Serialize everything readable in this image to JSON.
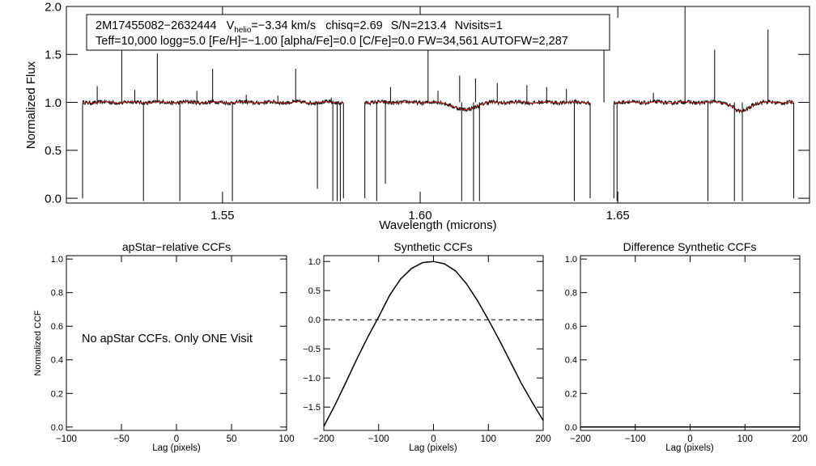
{
  "chart_data": [
    {
      "type": "line",
      "panel": "spectrum",
      "title": "",
      "xlabel": "Wavelength (microns)",
      "ylabel": "Normalized Flux",
      "xlim": [
        1.5105,
        1.6985
      ],
      "ylim": [
        -0.05,
        2.0
      ],
      "x_ticks": [
        1.55,
        1.6,
        1.65
      ],
      "x_tick_labels": [
        "1.55",
        "1.60",
        "1.65"
      ],
      "y_ticks": [
        0.0,
        0.5,
        1.0,
        1.5,
        2.0
      ],
      "y_tick_labels": [
        "0.0",
        "0.5",
        "1.0",
        "1.5",
        "2.0"
      ],
      "info_box": {
        "star_id": "2M17455082−2632444",
        "vhelio_label": "V",
        "vhelio_sub": "helio",
        "vhelio_value": "=−3.34 km/s",
        "chisq": "chisq=2.69",
        "sn": "S/N=213.4",
        "nvisits": "Nvisits=1",
        "line2": "Teff=10,000 logg=5.0 [Fe/H]=−1.00 [alpha/Fe]=0.0 [C/Fe]=0.0 FW=34,561 AUTOFW=2,287"
      },
      "chips": [
        [
          1.5146,
          1.5806
        ],
        [
          1.586,
          1.643
        ],
        [
          1.649,
          1.6945
        ]
      ],
      "emission_spikes": [
        {
          "x": 1.5183,
          "y": 1.17
        },
        {
          "x": 1.5245,
          "y": 1.56
        },
        {
          "x": 1.5278,
          "y": 1.13
        },
        {
          "x": 1.5335,
          "y": 1.51
        },
        {
          "x": 1.5435,
          "y": 1.12
        },
        {
          "x": 1.5475,
          "y": 1.35
        },
        {
          "x": 1.556,
          "y": 1.08
        },
        {
          "x": 1.564,
          "y": 1.07
        },
        {
          "x": 1.5685,
          "y": 1.35
        },
        {
          "x": 1.5775,
          "y": 1.05
        },
        {
          "x": 1.5925,
          "y": 1.16
        },
        {
          "x": 1.602,
          "y": 1.6
        },
        {
          "x": 1.6045,
          "y": 1.12
        },
        {
          "x": 1.61,
          "y": 1.28
        },
        {
          "x": 1.614,
          "y": 1.25
        },
        {
          "x": 1.6195,
          "y": 1.2
        },
        {
          "x": 1.627,
          "y": 1.18
        },
        {
          "x": 1.632,
          "y": 1.16
        },
        {
          "x": 1.637,
          "y": 1.14
        },
        {
          "x": 1.6465,
          "y": 1.6
        },
        {
          "x": 1.659,
          "y": 1.1
        },
        {
          "x": 1.667,
          "y": 2.0
        },
        {
          "x": 1.6745,
          "y": 1.55
        },
        {
          "x": 1.688,
          "y": 1.76
        }
      ],
      "absorption_drops": [
        {
          "x": 1.53,
          "y": -0.03
        },
        {
          "x": 1.5392,
          "y": -0.03
        },
        {
          "x": 1.5525,
          "y": -0.03
        },
        {
          "x": 1.574,
          "y": 0.1
        },
        {
          "x": 1.5779,
          "y": -0.03
        },
        {
          "x": 1.579,
          "y": -0.03
        },
        {
          "x": 1.5798,
          "y": -0.03
        },
        {
          "x": 1.589,
          "y": -0.03
        },
        {
          "x": 1.5912,
          "y": 0.15
        },
        {
          "x": 1.6105,
          "y": -0.03
        },
        {
          "x": 1.6135,
          "y": -0.03
        },
        {
          "x": 1.615,
          "y": -0.03
        },
        {
          "x": 1.639,
          "y": -0.03
        },
        {
          "x": 1.6498,
          "y": -0.03
        },
        {
          "x": 1.6728,
          "y": -0.03
        },
        {
          "x": 1.6795,
          "y": -0.03
        },
        {
          "x": 1.6815,
          "y": -0.03
        }
      ],
      "broad_features": [
        {
          "x": 1.6113,
          "depth": 0.08,
          "width": 0.0035
        },
        {
          "x": 1.6812,
          "depth": 0.1,
          "width": 0.0025
        }
      ],
      "model_color": "#cc2222",
      "data_color": "#000000"
    },
    {
      "type": "line",
      "panel": "apstar-ccf",
      "title": "apStar−relative CCFs",
      "xlabel": "Lag (pixels)",
      "ylabel": "Normalized CCF",
      "xlim": [
        -100,
        100
      ],
      "ylim": [
        -0.02,
        1.02
      ],
      "x_ticks": [
        -100,
        -50,
        0,
        50,
        100
      ],
      "x_tick_labels": [
        "−100",
        "−50",
        "0",
        "50",
        "100"
      ],
      "y_ticks": [
        0.0,
        0.2,
        0.4,
        0.6,
        0.8,
        1.0
      ],
      "y_tick_labels": [
        "0.0",
        "0.2",
        "0.4",
        "0.6",
        "0.8",
        "1.0"
      ],
      "annotation": "No apStar CCFs.  Only ONE Visit"
    },
    {
      "type": "line",
      "panel": "synthetic-ccf",
      "title": "Synthetic CCFs",
      "xlabel": "Lag (pixels)",
      "xlim": [
        -200,
        200
      ],
      "ylim": [
        -1.9,
        1.1
      ],
      "x_ticks": [
        -200,
        -100,
        0,
        100,
        200
      ],
      "x_tick_labels": [
        "−200",
        "−100",
        "0",
        "100",
        "200"
      ],
      "y_ticks": [
        -1.5,
        -1.0,
        -0.5,
        0.0,
        0.5,
        1.0
      ],
      "y_tick_labels": [
        "−1.5",
        "−1.0",
        "−0.5",
        "0.0",
        "0.5",
        "1.0"
      ],
      "reference_line_y": 0.0,
      "x": [
        -200,
        -180,
        -160,
        -140,
        -120,
        -100,
        -80,
        -60,
        -40,
        -20,
        0,
        20,
        40,
        60,
        80,
        100,
        120,
        140,
        160,
        180,
        200
      ],
      "values": [
        -1.83,
        -1.47,
        -1.08,
        -0.68,
        -0.3,
        0.05,
        0.42,
        0.7,
        0.88,
        0.98,
        1.0,
        0.96,
        0.84,
        0.62,
        0.33,
        0.0,
        -0.35,
        -0.72,
        -1.09,
        -1.42,
        -1.73
      ]
    },
    {
      "type": "line",
      "panel": "difference-ccf",
      "title": "Difference Synthetic CCFs",
      "xlabel": "Lag (pixels)",
      "xlim": [
        -200,
        200
      ],
      "ylim": [
        -0.02,
        1.02
      ],
      "x_ticks": [
        -200,
        -100,
        0,
        100,
        200
      ],
      "x_tick_labels": [
        "−200",
        "−100",
        "0",
        "100",
        "200"
      ],
      "y_ticks": [
        0.0,
        0.2,
        0.4,
        0.6,
        0.8,
        1.0
      ],
      "y_tick_labels": [
        "0.0",
        "0.2",
        "0.4",
        "0.6",
        "0.8",
        "1.0"
      ],
      "x": [
        -200,
        200
      ],
      "values": [
        0.0,
        0.0
      ]
    }
  ]
}
